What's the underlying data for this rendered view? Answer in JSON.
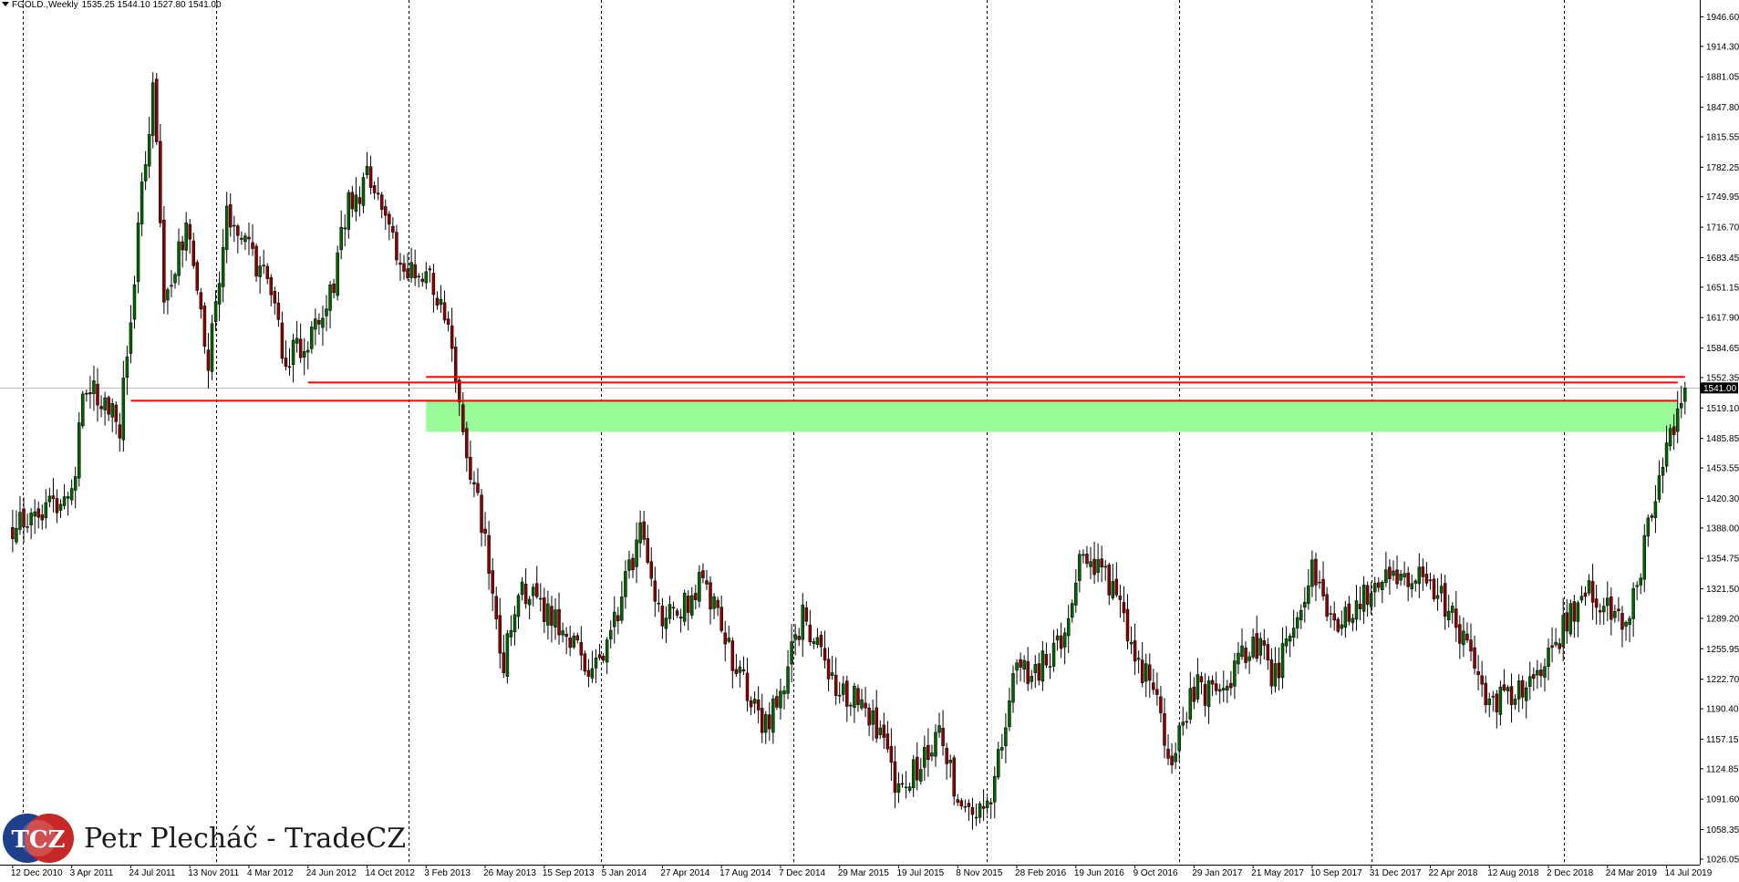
{
  "header": {
    "symbol": "FGOLD.,Weekly",
    "ohlc": "1535.25 1544.10 1527.80 1541.00"
  },
  "watermark": {
    "logo_letters": "TCZ",
    "author": "Petr Plecháč - TradeCZ"
  },
  "chart_data": {
    "type": "candlestick",
    "instrument": "FGOLD",
    "timeframe": "Weekly",
    "current_price": 1541.0,
    "current_price_label": "1541.00",
    "y_ticks": [
      "1946.60",
      "1914.30",
      "1881.05",
      "1847.80",
      "1815.55",
      "1782.25",
      "1749.95",
      "1716.70",
      "1683.45",
      "1651.15",
      "1617.90",
      "1584.65",
      "1552.35",
      "1519.10",
      "1485.85",
      "1453.55",
      "1420.30",
      "1388.00",
      "1354.75",
      "1321.50",
      "1289.20",
      "1255.95",
      "1222.70",
      "1190.40",
      "1157.15",
      "1124.85",
      "1091.60",
      "1058.35",
      "1026.05"
    ],
    "ylim": [
      1020,
      1965
    ],
    "x_ticks": [
      "12 Dec 2010",
      "3 Apr 2011",
      "24 Jul 2011",
      "13 Nov 2011",
      "4 Mar 2012",
      "24 Jun 2012",
      "14 Oct 2012",
      "3 Feb 2013",
      "26 May 2013",
      "15 Sep 2013",
      "5 Jan 2014",
      "27 Apr 2014",
      "17 Aug 2014",
      "7 Dec 2014",
      "29 Mar 2015",
      "19 Jul 2015",
      "8 Nov 2015",
      "28 Feb 2016",
      "19 Jun 2016",
      "9 Oct 2016",
      "29 Jan 2017",
      "21 May 2017",
      "10 Sep 2017",
      "31 Dec 2017",
      "22 Apr 2018",
      "12 Aug 2018",
      "2 Dec 2018",
      "24 Mar 2019",
      "14 Jul 2019"
    ],
    "period_separators": [
      "2011",
      "2012",
      "2013",
      "2014",
      "2015",
      "2016",
      "2017",
      "2018",
      "2019"
    ],
    "close_path": [
      [
        "12 Dec 2010",
        1385
      ],
      [
        "3 Apr 2011",
        1430
      ],
      [
        "1 May 2011",
        1550
      ],
      [
        "5 Jun 2011",
        1530
      ],
      [
        "3 Jul 2011",
        1490
      ],
      [
        "24 Jul 2011",
        1625
      ],
      [
        "14 Aug 2011",
        1760
      ],
      [
        "4 Sep 2011",
        1870
      ],
      [
        "25 Sep 2011",
        1640
      ],
      [
        "13 Nov 2011",
        1720
      ],
      [
        "18 Dec 2011",
        1560
      ],
      [
        "22 Jan 2012",
        1740
      ],
      [
        "4 Mar 2012",
        1700
      ],
      [
        "15 Apr 2012",
        1640
      ],
      [
        "13 May 2012",
        1570
      ],
      [
        "24 Jun 2012",
        1590
      ],
      [
        "29 Jul 2012",
        1620
      ],
      [
        "9 Sep 2012",
        1740
      ],
      [
        "14 Oct 2012",
        1770
      ],
      [
        "18 Nov 2012",
        1720
      ],
      [
        "23 Dec 2012",
        1665
      ],
      [
        "3 Feb 2013",
        1670
      ],
      [
        "17 Mar 2013",
        1600
      ],
      [
        "14 Apr 2013",
        1480
      ],
      [
        "26 May 2013",
        1380
      ],
      [
        "30 Jun 2013",
        1240
      ],
      [
        "4 Aug 2013",
        1320
      ],
      [
        "15 Sep 2013",
        1300
      ],
      [
        "27 Oct 2013",
        1280
      ],
      [
        "8 Dec 2013",
        1225
      ],
      [
        "5 Jan 2014",
        1240
      ],
      [
        "16 Mar 2014",
        1380
      ],
      [
        "27 Apr 2014",
        1295
      ],
      [
        "1 Jun 2014",
        1300
      ],
      [
        "6 Jul 2014",
        1330
      ],
      [
        "17 Aug 2014",
        1280
      ],
      [
        "28 Sep 2014",
        1215
      ],
      [
        "9 Nov 2014",
        1170
      ],
      [
        "7 Dec 2014",
        1200
      ],
      [
        "18 Jan 2015",
        1295
      ],
      [
        "29 Mar 2015",
        1200
      ],
      [
        "3 May 2015",
        1210
      ],
      [
        "7 Jun 2015",
        1175
      ],
      [
        "19 Jul 2015",
        1095
      ],
      [
        "30 Aug 2015",
        1130
      ],
      [
        "11 Oct 2015",
        1160
      ],
      [
        "8 Nov 2015",
        1085
      ],
      [
        "13 Dec 2015",
        1060
      ],
      [
        "17 Jan 2016",
        1110
      ],
      [
        "28 Feb 2016",
        1240
      ],
      [
        "3 Apr 2016",
        1230
      ],
      [
        "15 May 2016",
        1260
      ],
      [
        "19 Jun 2016",
        1320
      ],
      [
        "3 Jul 2016",
        1365
      ],
      [
        "14 Aug 2016",
        1340
      ],
      [
        "9 Oct 2016",
        1255
      ],
      [
        "13 Nov 2016",
        1205
      ],
      [
        "18 Dec 2016",
        1135
      ],
      [
        "29 Jan 2017",
        1215
      ],
      [
        "12 Mar 2017",
        1205
      ],
      [
        "21 May 2017",
        1265
      ],
      [
        "2 Jul 2017",
        1225
      ],
      [
        "10 Sep 2017",
        1345
      ],
      [
        "8 Oct 2017",
        1290
      ],
      [
        "19 Nov 2017",
        1285
      ],
      [
        "31 Dec 2017",
        1325
      ],
      [
        "28 Jan 2018",
        1345
      ],
      [
        "22 Apr 2018",
        1325
      ],
      [
        "27 May 2018",
        1300
      ],
      [
        "8 Jul 2018",
        1240
      ],
      [
        "12 Aug 2018",
        1195
      ],
      [
        "16 Sep 2018",
        1200
      ],
      [
        "2 Dec 2018",
        1245
      ],
      [
        "20 Jan 2019",
        1300
      ],
      [
        "24 Feb 2019",
        1320
      ],
      [
        "24 Mar 2019",
        1295
      ],
      [
        "21 Apr 2019",
        1280
      ],
      [
        "26 May 2019",
        1340
      ],
      [
        "16 Jun 2019",
        1410
      ],
      [
        "14 Jul 2019",
        1470
      ],
      [
        "4 Aug 2019",
        1525
      ],
      [
        "18 Aug 2019",
        1541
      ]
    ],
    "annotations": {
      "resistance_lines": [
        {
          "from": "24 Jul 2011",
          "to": "4 Aug 2019",
          "value": 1527.0,
          "color": "#ff0000"
        },
        {
          "from": "24 Jun 2012",
          "to": "4 Aug 2019",
          "value": 1547.0,
          "color": "#ff0000"
        },
        {
          "from": "3 Feb 2013",
          "to": "18 Aug 2019",
          "value": 1553.0,
          "color": "#ff0000"
        }
      ],
      "support_zone": {
        "from": "3 Feb 2013",
        "to": "4 Aug 2019",
        "low": 1493.0,
        "high": 1527.0,
        "color": "#98fb98"
      }
    },
    "colors": {
      "background": "#ffffff",
      "bull_candle": "#006400",
      "bear_candle": "#8b0000",
      "wick": "#000000",
      "separator": "#000000",
      "bid_line": "#c0c0c0",
      "price_label_bg": "#000000",
      "price_label_text": "#ffffff"
    },
    "grid": false
  }
}
